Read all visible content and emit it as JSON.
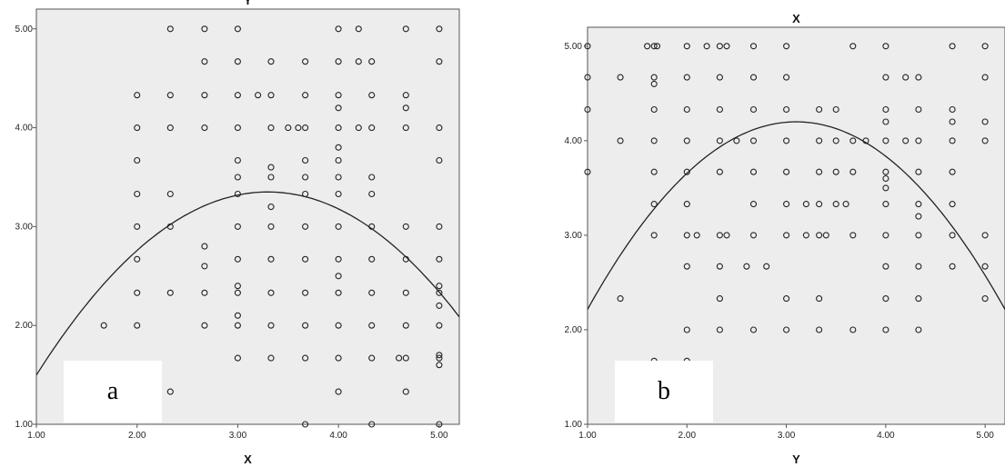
{
  "chart_data": [
    {
      "type": "scatter",
      "panel_label": "a",
      "xlabel": "X",
      "ylabel": "",
      "top_label": "Y",
      "xlim": [
        1,
        5.2
      ],
      "ylim": [
        1,
        5.2
      ],
      "x_ticks": [
        {
          "value": 1,
          "label": "1.00"
        },
        {
          "value": 2,
          "label": "2.00"
        },
        {
          "value": 3,
          "label": "3.00"
        },
        {
          "value": 4,
          "label": "4.00"
        },
        {
          "value": 5,
          "label": "5.00"
        }
      ],
      "y_ticks": [
        {
          "value": 1,
          "label": "1.00"
        },
        {
          "value": 2,
          "label": "2.00"
        },
        {
          "value": 3,
          "label": "3.00"
        },
        {
          "value": 4,
          "label": "4.00"
        },
        {
          "value": 5,
          "label": "5.00"
        }
      ],
      "grid": false,
      "points": [
        [
          1.67,
          2
        ],
        [
          2,
          4.33
        ],
        [
          2,
          4
        ],
        [
          2,
          3.67
        ],
        [
          2,
          3.33
        ],
        [
          2,
          3
        ],
        [
          2,
          2.67
        ],
        [
          2,
          2.33
        ],
        [
          2,
          2
        ],
        [
          2.33,
          5
        ],
        [
          2.33,
          4.33
        ],
        [
          2.33,
          4
        ],
        [
          2.33,
          3.33
        ],
        [
          2.33,
          3
        ],
        [
          2.33,
          2.33
        ],
        [
          2.33,
          1.33
        ],
        [
          2.67,
          5
        ],
        [
          2.67,
          4.67
        ],
        [
          2.67,
          4.33
        ],
        [
          2.67,
          4
        ],
        [
          2.67,
          2.8
        ],
        [
          2.67,
          2.6
        ],
        [
          2.67,
          2.33
        ],
        [
          2.67,
          2
        ],
        [
          3,
          5
        ],
        [
          3,
          4.67
        ],
        [
          3,
          4.33
        ],
        [
          3,
          4
        ],
        [
          3,
          3.67
        ],
        [
          3,
          3.5
        ],
        [
          3,
          3.33
        ],
        [
          3,
          3
        ],
        [
          3,
          2.67
        ],
        [
          3,
          2.4
        ],
        [
          3,
          2.33
        ],
        [
          3,
          2.1
        ],
        [
          3,
          2
        ],
        [
          3,
          1.67
        ],
        [
          3.2,
          4.33
        ],
        [
          3.33,
          4.33
        ],
        [
          3.33,
          4.67
        ],
        [
          3.33,
          4
        ],
        [
          3.33,
          3.6
        ],
        [
          3.33,
          3.5
        ],
        [
          3.33,
          3.2
        ],
        [
          3.33,
          3
        ],
        [
          3.33,
          2.67
        ],
        [
          3.33,
          2.33
        ],
        [
          3.33,
          2
        ],
        [
          3.33,
          1.67
        ],
        [
          3.5,
          4
        ],
        [
          3.6,
          4
        ],
        [
          3.67,
          4.67
        ],
        [
          3.67,
          4.33
        ],
        [
          3.67,
          4
        ],
        [
          3.67,
          3.67
        ],
        [
          3.67,
          3.5
        ],
        [
          3.67,
          3.33
        ],
        [
          3.67,
          3
        ],
        [
          3.67,
          2.67
        ],
        [
          3.67,
          2.33
        ],
        [
          3.67,
          2
        ],
        [
          3.67,
          1.67
        ],
        [
          3.67,
          1
        ],
        [
          4,
          5
        ],
        [
          4,
          4.67
        ],
        [
          4,
          4.33
        ],
        [
          4,
          4.2
        ],
        [
          4,
          4
        ],
        [
          4,
          3.8
        ],
        [
          4,
          3.67
        ],
        [
          4,
          3.5
        ],
        [
          4,
          3.33
        ],
        [
          4,
          3
        ],
        [
          4,
          2.67
        ],
        [
          4,
          2.5
        ],
        [
          4,
          2.33
        ],
        [
          4,
          2
        ],
        [
          4,
          1.67
        ],
        [
          4,
          1.33
        ],
        [
          4.2,
          5
        ],
        [
          4.2,
          4.67
        ],
        [
          4.2,
          4
        ],
        [
          4.33,
          4.67
        ],
        [
          4.33,
          4.33
        ],
        [
          4.33,
          4
        ],
        [
          4.33,
          3.5
        ],
        [
          4.33,
          3.33
        ],
        [
          4.33,
          3
        ],
        [
          4.33,
          2.67
        ],
        [
          4.33,
          2.33
        ],
        [
          4.33,
          2
        ],
        [
          4.33,
          1.67
        ],
        [
          4.33,
          1
        ],
        [
          4.67,
          5
        ],
        [
          4.67,
          4.33
        ],
        [
          4.67,
          4.2
        ],
        [
          4.67,
          4
        ],
        [
          4.67,
          3
        ],
        [
          4.67,
          2.67
        ],
        [
          4.67,
          2.33
        ],
        [
          4.67,
          2
        ],
        [
          4.67,
          1.67
        ],
        [
          4.6,
          1.67
        ],
        [
          4.67,
          1.33
        ],
        [
          5,
          5
        ],
        [
          5,
          4.67
        ],
        [
          5,
          4
        ],
        [
          5,
          3.67
        ],
        [
          5,
          3
        ],
        [
          5,
          2.67
        ],
        [
          5,
          2.4
        ],
        [
          5,
          2.33
        ],
        [
          5,
          2.2
        ],
        [
          5,
          2
        ],
        [
          5,
          1.7
        ],
        [
          5,
          1.67
        ],
        [
          5,
          1.6
        ],
        [
          5,
          1
        ]
      ],
      "fit": {
        "type": "quadratic",
        "vertex_x": 3.3,
        "vertex_y": 3.35,
        "a": -0.35
      }
    },
    {
      "type": "scatter",
      "panel_label": "b",
      "xlabel": "Y",
      "ylabel": "",
      "top_label": "X",
      "xlim": [
        1,
        5.2
      ],
      "ylim": [
        1,
        5.2
      ],
      "x_ticks": [
        {
          "value": 1,
          "label": "1.00"
        },
        {
          "value": 2,
          "label": "2.00"
        },
        {
          "value": 3,
          "label": "3.00"
        },
        {
          "value": 4,
          "label": "4.00"
        },
        {
          "value": 5,
          "label": "5.00"
        }
      ],
      "y_ticks": [
        {
          "value": 1,
          "label": "1.00"
        },
        {
          "value": 2,
          "label": "2.00"
        },
        {
          "value": 3,
          "label": "3.00"
        },
        {
          "value": 4,
          "label": "4.00"
        },
        {
          "value": 5,
          "label": "5.00"
        }
      ],
      "grid": false,
      "points": [
        [
          1,
          5
        ],
        [
          1,
          4.67
        ],
        [
          1,
          4.33
        ],
        [
          1,
          3.67
        ],
        [
          1.33,
          4.67
        ],
        [
          1.33,
          4
        ],
        [
          1.33,
          2.33
        ],
        [
          1.6,
          5
        ],
        [
          1.67,
          5
        ],
        [
          1.7,
          5
        ],
        [
          1.67,
          4.67
        ],
        [
          1.67,
          4.6
        ],
        [
          1.67,
          4.33
        ],
        [
          1.67,
          4
        ],
        [
          1.67,
          3.67
        ],
        [
          1.67,
          3.33
        ],
        [
          1.67,
          3
        ],
        [
          1.67,
          1.67
        ],
        [
          2,
          5
        ],
        [
          2,
          4.67
        ],
        [
          2,
          4.33
        ],
        [
          2,
          4
        ],
        [
          2,
          3.67
        ],
        [
          2,
          3.33
        ],
        [
          2,
          3
        ],
        [
          2,
          2.67
        ],
        [
          2,
          2
        ],
        [
          2,
          1.67
        ],
        [
          2.1,
          3
        ],
        [
          2.2,
          5
        ],
        [
          2.33,
          5
        ],
        [
          2.4,
          5
        ],
        [
          2.33,
          4.67
        ],
        [
          2.33,
          4.33
        ],
        [
          2.33,
          4
        ],
        [
          2.33,
          3.67
        ],
        [
          2.33,
          3
        ],
        [
          2.33,
          2.67
        ],
        [
          2.33,
          2.33
        ],
        [
          2.33,
          2
        ],
        [
          2.4,
          3
        ],
        [
          2.5,
          4
        ],
        [
          2.6,
          2.67
        ],
        [
          2.67,
          5
        ],
        [
          2.67,
          4.67
        ],
        [
          2.67,
          4.33
        ],
        [
          2.67,
          4
        ],
        [
          2.67,
          3.67
        ],
        [
          2.67,
          3.33
        ],
        [
          2.67,
          3
        ],
        [
          2.67,
          2
        ],
        [
          2.8,
          2.67
        ],
        [
          3,
          5
        ],
        [
          3,
          4.67
        ],
        [
          3,
          4.33
        ],
        [
          3,
          4
        ],
        [
          3,
          3.67
        ],
        [
          3,
          3.33
        ],
        [
          3,
          3
        ],
        [
          3,
          2.33
        ],
        [
          3,
          2
        ],
        [
          3.2,
          3.33
        ],
        [
          3.2,
          3
        ],
        [
          3.33,
          4.33
        ],
        [
          3.33,
          4
        ],
        [
          3.33,
          3.67
        ],
        [
          3.33,
          3.33
        ],
        [
          3.33,
          3
        ],
        [
          3.33,
          2.33
        ],
        [
          3.33,
          2
        ],
        [
          3.4,
          3
        ],
        [
          3.5,
          4.33
        ],
        [
          3.5,
          4
        ],
        [
          3.5,
          3.67
        ],
        [
          3.5,
          3.33
        ],
        [
          3.6,
          3.33
        ],
        [
          3.67,
          5
        ],
        [
          3.67,
          4
        ],
        [
          3.67,
          3.67
        ],
        [
          3.67,
          3
        ],
        [
          3.67,
          2
        ],
        [
          3.8,
          4
        ],
        [
          4,
          5
        ],
        [
          4,
          4.67
        ],
        [
          4,
          4.33
        ],
        [
          4,
          4.2
        ],
        [
          4,
          4
        ],
        [
          4,
          3.67
        ],
        [
          4,
          3.6
        ],
        [
          4,
          3.5
        ],
        [
          4,
          3.33
        ],
        [
          4,
          3
        ],
        [
          4,
          2.67
        ],
        [
          4,
          2.33
        ],
        [
          4,
          2
        ],
        [
          4.2,
          4.67
        ],
        [
          4.2,
          4
        ],
        [
          4.33,
          4.67
        ],
        [
          4.33,
          4.33
        ],
        [
          4.33,
          4
        ],
        [
          4.33,
          3.67
        ],
        [
          4.33,
          3.33
        ],
        [
          4.33,
          3.2
        ],
        [
          4.33,
          3
        ],
        [
          4.33,
          2.67
        ],
        [
          4.33,
          2.33
        ],
        [
          4.33,
          2
        ],
        [
          4.67,
          5
        ],
        [
          4.67,
          4.33
        ],
        [
          4.67,
          4.2
        ],
        [
          4.67,
          4
        ],
        [
          4.67,
          3.67
        ],
        [
          4.67,
          3.33
        ],
        [
          4.67,
          3
        ],
        [
          4.67,
          2.67
        ],
        [
          5,
          5
        ],
        [
          5,
          4.67
        ],
        [
          5,
          4.2
        ],
        [
          5,
          4
        ],
        [
          5,
          3
        ],
        [
          5,
          2.67
        ],
        [
          5,
          2.33
        ]
      ],
      "fit": {
        "type": "quadratic",
        "vertex_x": 3.1,
        "vertex_y": 4.2,
        "a": -0.45
      }
    }
  ]
}
